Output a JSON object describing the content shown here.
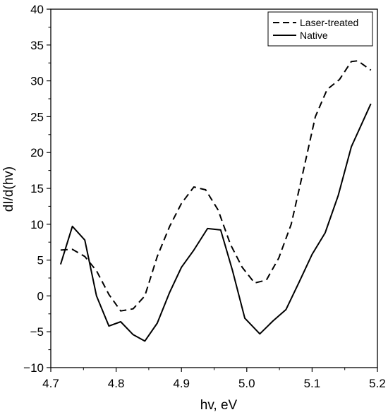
{
  "chart_data": {
    "type": "line",
    "title": "",
    "xlabel": "hv, eV",
    "ylabel": "dI/d(hv)",
    "xlim": [
      4.7,
      5.2
    ],
    "ylim": [
      -10,
      40
    ],
    "x_ticks": [
      "4.7",
      "4.8",
      "4.9",
      "5.0",
      "5.1",
      "5.2"
    ],
    "y_ticks": [
      "−10",
      "−5",
      "0",
      "5",
      "10",
      "15",
      "20",
      "25",
      "30",
      "35",
      "40"
    ],
    "grid": false,
    "legend_position": "top-right",
    "series": [
      {
        "name": "Laser-treated",
        "line_style": "dashed",
        "color": "#000000",
        "x": [
          4.715,
          4.733,
          4.752,
          4.77,
          4.789,
          4.807,
          4.826,
          4.844,
          4.863,
          4.882,
          4.9,
          4.919,
          4.937,
          4.956,
          4.975,
          4.993,
          5.012,
          5.03,
          5.049,
          5.068,
          5.086,
          5.105,
          5.123,
          5.142,
          5.16,
          5.17,
          5.19
        ],
        "y": [
          6.4,
          6.5,
          5.5,
          3.5,
          0.2,
          -2.1,
          -1.8,
          0.0,
          5.5,
          9.7,
          12.9,
          15.2,
          14.8,
          12.0,
          7.2,
          4.0,
          1.8,
          2.2,
          5.3,
          10.0,
          17.2,
          25.0,
          28.8,
          30.2,
          32.7,
          32.8,
          31.5
        ]
      },
      {
        "name": "Native",
        "line_style": "solid",
        "color": "#000000",
        "x": [
          4.715,
          4.733,
          4.752,
          4.77,
          4.789,
          4.807,
          4.826,
          4.844,
          4.863,
          4.882,
          4.9,
          4.919,
          4.94,
          4.96,
          4.978,
          4.997,
          5.02,
          5.04,
          5.06,
          5.08,
          5.1,
          5.12,
          5.14,
          5.16,
          5.19
        ],
        "y": [
          4.4,
          9.7,
          7.8,
          0.0,
          -4.2,
          -3.6,
          -5.4,
          -6.3,
          -3.8,
          0.5,
          4.0,
          6.4,
          9.4,
          9.2,
          3.6,
          -3.1,
          -5.3,
          -3.5,
          -1.9,
          1.9,
          5.8,
          8.8,
          14.0,
          20.8,
          26.8
        ]
      }
    ]
  }
}
